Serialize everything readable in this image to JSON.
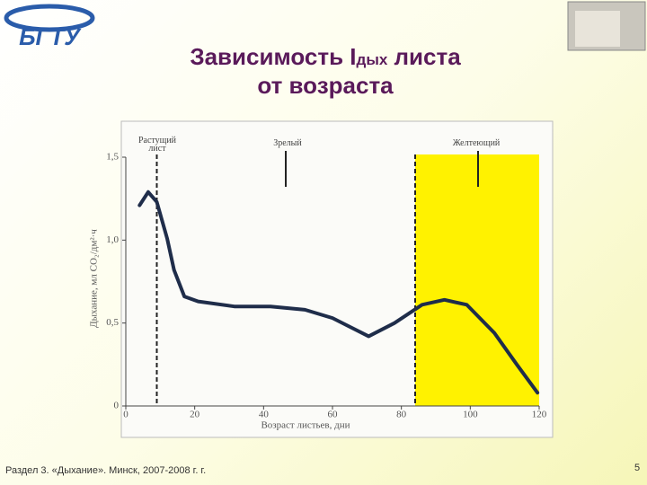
{
  "logo": "БГТУ",
  "title": {
    "main": "Зависимость I",
    "sub": "дых",
    "rest": " листа",
    "line2": "от возраста"
  },
  "footer": "Раздел 3. «Дыхание». Минск, 2007-2008 г. г.",
  "page_number": "5",
  "chart_data": {
    "type": "line",
    "x": [
      4,
      6.5,
      9,
      12,
      14,
      17,
      21,
      31.5,
      42,
      52,
      60,
      70.5,
      78,
      86,
      92.5,
      99,
      107,
      113.5,
      119.5
    ],
    "values": [
      1.21,
      1.29,
      1.23,
      1.01,
      0.82,
      0.66,
      0.63,
      0.6,
      0.6,
      0.58,
      0.53,
      0.42,
      0.5,
      0.61,
      0.64,
      0.61,
      0.44,
      0.25,
      0.08
    ],
    "color": "#1f2d4a",
    "xlim": [
      0,
      120
    ],
    "xticks": [
      0,
      20,
      40,
      60,
      80,
      100,
      120
    ],
    "ylim": [
      0,
      1.5
    ],
    "yticks": [
      0,
      {
        "value": 0.5,
        "label": "0,5"
      },
      {
        "value": 1,
        "label": "1,0"
      },
      {
        "value": 1.5,
        "label": "1,5"
      }
    ],
    "x_label": "Возраст листьев, дни",
    "y_label": "Дыхание, мл CO₂/дм²·ч",
    "vlines": [
      9,
      84
    ],
    "region": {
      "x": [
        84,
        120
      ],
      "color": "#fff200"
    },
    "annotations": [
      "Растущий лист",
      "Зрелый",
      "Желтеющий"
    ]
  }
}
